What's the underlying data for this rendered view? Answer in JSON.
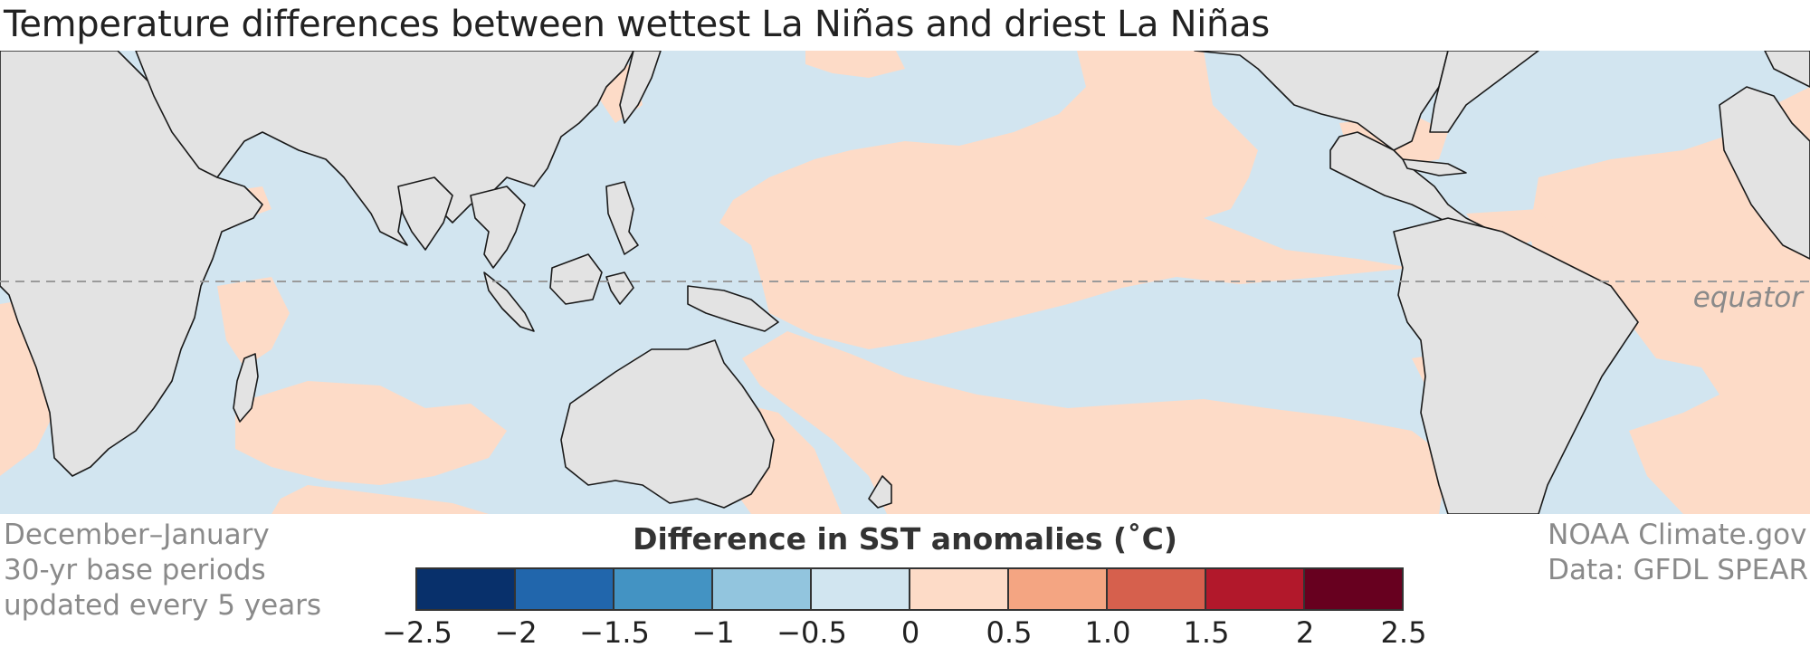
{
  "title": "Temperature differences between wettest La Niñas and driest La Niñas",
  "equator_label": "equator",
  "info_left": [
    "December–January",
    "30-yr base periods",
    "updated every 5 years"
  ],
  "info_right": [
    "NOAA Climate.gov",
    "Data: GFDL SPEAR"
  ],
  "legend": {
    "title": "Difference in SST anomalies (˚C)",
    "colors": [
      "#08306b",
      "#2166ac",
      "#4393c3",
      "#92c5de",
      "#d1e5f0",
      "#fddbc7",
      "#f4a582",
      "#d6604d",
      "#b2182b",
      "#67001f"
    ],
    "ticks": [
      "−2.5",
      "−2",
      "−1.5",
      "−1",
      "−0.5",
      "0",
      "0.5",
      "1.0",
      "1.5",
      "2",
      "2.5"
    ]
  },
  "map_colors": {
    "land": "#e3e3e3",
    "cool": "#d2e5f0",
    "warm": "#fddbc7",
    "coast": "#1a1a1a",
    "equator_line": "#9a9a9a"
  }
}
